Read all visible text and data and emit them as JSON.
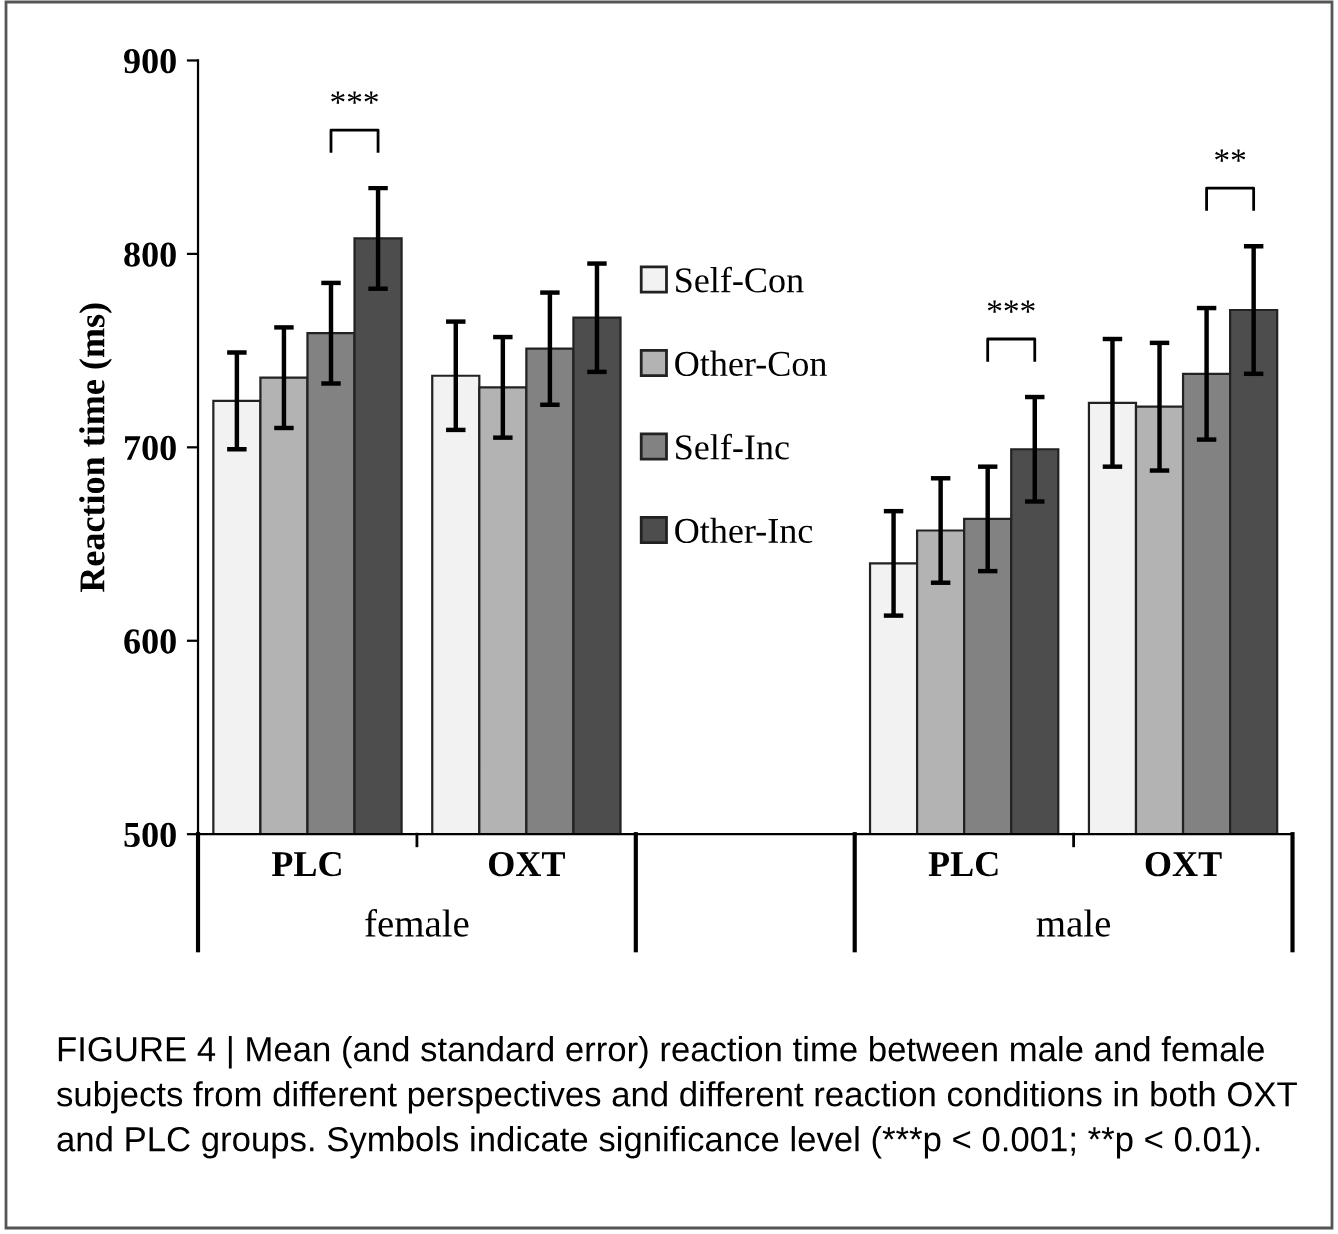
{
  "chart_data": {
    "type": "bar",
    "ylabel": "Reaction time (ms)",
    "categories": [
      "PLC",
      "OXT",
      null,
      "PLC",
      "OXT"
    ],
    "series": [
      {
        "name": "Self-Con",
        "color": "#f2f2f2",
        "values": [
          724,
          737,
          null,
          640,
          723
        ],
        "errors": [
          25,
          28,
          null,
          27,
          33
        ]
      },
      {
        "name": "Other-Con",
        "color": "#b3b3b3",
        "values": [
          736,
          731,
          null,
          657,
          721
        ],
        "errors": [
          26,
          26,
          null,
          27,
          33
        ]
      },
      {
        "name": "Self-Inc",
        "color": "#828282",
        "values": [
          759,
          751,
          null,
          663,
          738
        ],
        "errors": [
          26,
          29,
          null,
          27,
          34
        ]
      },
      {
        "name": "Other-Inc",
        "color": "#4d4d4d",
        "values": [
          808,
          767,
          null,
          699,
          771
        ],
        "errors": [
          26,
          28,
          null,
          27,
          33
        ]
      }
    ],
    "ylim": [
      500,
      900
    ],
    "yticks": [
      500,
      600,
      700,
      800,
      900
    ],
    "grid": false,
    "legend": "center",
    "annotations": [
      "***",
      "***",
      "**",
      "female",
      "male",
      "FIGURE 4 | Mean (and standard error) reaction time between male and female subjects from different perspectives and different reaction conditions in both OXT and PLC groups. Symbols indicate significance level (***p < 0.001; **p < 0.01)."
    ]
  }
}
